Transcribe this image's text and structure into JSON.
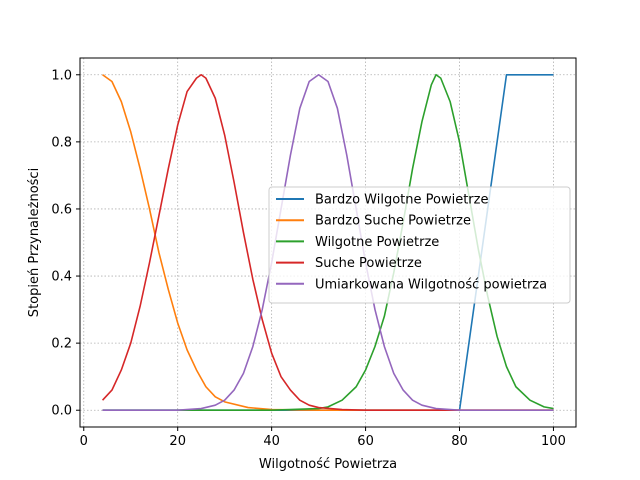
{
  "chart_data": {
    "type": "line",
    "xlabel": "Wilgotność Powietrza",
    "ylabel": "Stopień Przynależności",
    "xlim": [
      -0.8,
      104.8
    ],
    "ylim": [
      -0.05,
      1.05
    ],
    "xticks": [
      0,
      20,
      40,
      60,
      80,
      100
    ],
    "yticks": [
      0.0,
      0.2,
      0.4,
      0.6,
      0.8,
      1.0
    ],
    "xtick_labels": [
      "0",
      "20",
      "40",
      "60",
      "80",
      "100"
    ],
    "ytick_labels": [
      "0.0",
      "0.2",
      "0.4",
      "0.6",
      "0.8",
      "1.0"
    ],
    "grid": true,
    "legend_position": "center-right",
    "series": [
      {
        "name": "Bardzo Wilgotne Powietrze",
        "color": "#1f77b4",
        "x": [
          4,
          80,
          90,
          100
        ],
        "y": [
          0,
          0,
          1,
          1
        ]
      },
      {
        "name": "Bardzo Suche Powietrze",
        "color": "#ff7f0e",
        "x": [
          4,
          6,
          8,
          10,
          12,
          14,
          16,
          18,
          20,
          22,
          24,
          26,
          28,
          30,
          35,
          40,
          50,
          60,
          70,
          80,
          90,
          100
        ],
        "y": [
          1.0,
          0.98,
          0.92,
          0.83,
          0.72,
          0.6,
          0.47,
          0.36,
          0.26,
          0.18,
          0.12,
          0.07,
          0.04,
          0.025,
          0.008,
          0.002,
          0,
          0,
          0,
          0,
          0,
          0
        ]
      },
      {
        "name": "Wilgotne Powietrze",
        "color": "#2ca02c",
        "x": [
          4,
          40,
          50,
          52,
          55,
          58,
          60,
          62,
          64,
          66,
          68,
          70,
          72,
          74,
          75,
          76,
          78,
          80,
          82,
          84,
          86,
          88,
          90,
          92,
          95,
          98,
          100
        ],
        "y": [
          0,
          0,
          0.005,
          0.01,
          0.03,
          0.07,
          0.12,
          0.19,
          0.28,
          0.41,
          0.56,
          0.72,
          0.86,
          0.97,
          1.0,
          0.99,
          0.92,
          0.8,
          0.64,
          0.48,
          0.34,
          0.22,
          0.13,
          0.07,
          0.03,
          0.01,
          0.005
        ]
      },
      {
        "name": "Suche Powietrze",
        "color": "#d62728",
        "x": [
          4,
          6,
          8,
          10,
          12,
          14,
          16,
          18,
          20,
          22,
          24,
          25,
          26,
          28,
          30,
          32,
          34,
          36,
          38,
          40,
          42,
          44,
          46,
          48,
          50,
          55,
          60,
          70,
          80,
          90,
          100
        ],
        "y": [
          0.03,
          0.06,
          0.12,
          0.2,
          0.31,
          0.44,
          0.58,
          0.72,
          0.85,
          0.95,
          0.99,
          1.0,
          0.99,
          0.93,
          0.82,
          0.68,
          0.53,
          0.39,
          0.27,
          0.17,
          0.1,
          0.06,
          0.03,
          0.015,
          0.008,
          0.002,
          0,
          0,
          0,
          0,
          0
        ]
      },
      {
        "name": "Umiarkowana Wilgotność powietrza",
        "color": "#9467bd",
        "x": [
          4,
          20,
          25,
          28,
          30,
          32,
          34,
          36,
          38,
          40,
          42,
          44,
          46,
          48,
          50,
          52,
          54,
          56,
          58,
          60,
          62,
          64,
          66,
          68,
          70,
          72,
          75,
          80,
          90,
          100
        ],
        "y": [
          0,
          0,
          0.005,
          0.015,
          0.03,
          0.06,
          0.11,
          0.19,
          0.3,
          0.44,
          0.6,
          0.76,
          0.9,
          0.98,
          1.0,
          0.98,
          0.9,
          0.76,
          0.6,
          0.44,
          0.3,
          0.19,
          0.11,
          0.06,
          0.03,
          0.015,
          0.005,
          0,
          0,
          0
        ]
      }
    ]
  }
}
